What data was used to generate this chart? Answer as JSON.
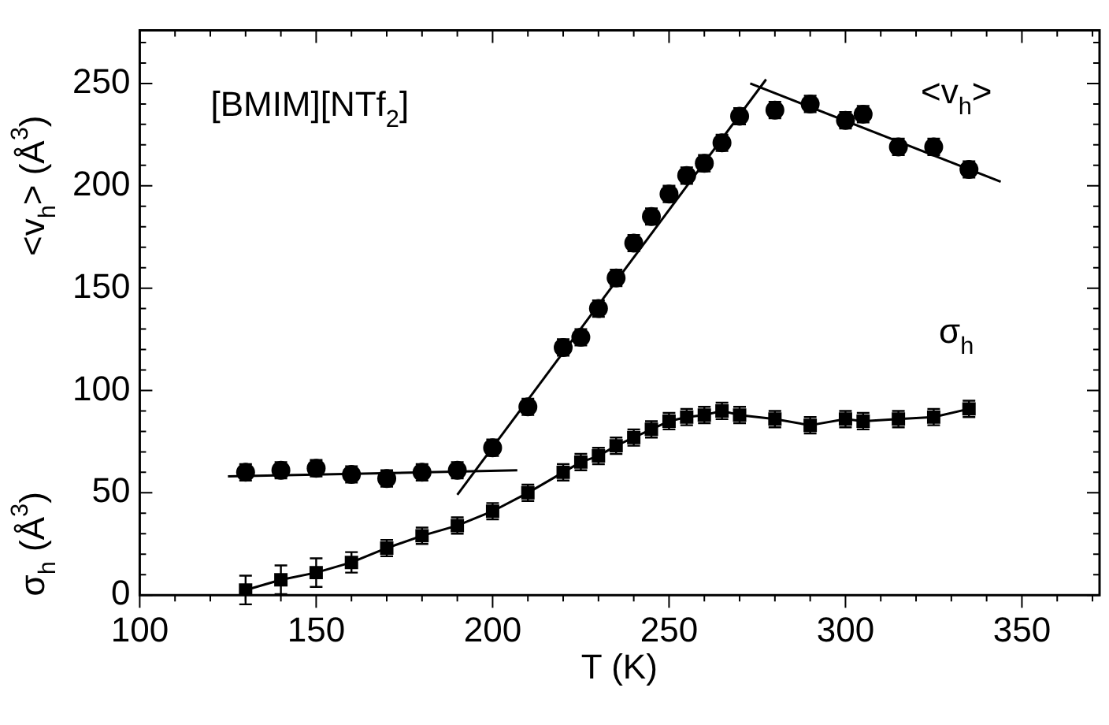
{
  "chart_data": {
    "type": "scatter",
    "xlabel": "T (K)",
    "ylabel": "<v$_{h}$> (Å$^{3}$)",
    "annotations": [
      "[BMIM][NTf$_{2}$]",
      "σ$_{h}$ (Å$^{3}$)"
    ],
    "x": [
      130,
      140,
      150,
      160,
      170,
      180,
      190,
      200,
      210,
      220,
      225,
      230,
      235,
      240,
      245,
      250,
      255,
      260,
      265,
      270,
      280,
      290,
      300,
      305,
      315,
      325,
      335
    ],
    "series": [
      {
        "name": "<v$_{h}$>",
        "marker": "circle",
        "color": "#000000",
        "values": [
          60,
          61,
          62,
          59,
          57,
          60,
          61,
          72,
          92,
          121,
          126,
          140,
          155,
          172,
          185,
          196,
          205,
          211,
          221,
          234,
          237,
          240,
          232,
          235,
          219,
          219,
          208
        ],
        "errors": [
          4,
          4,
          4,
          4,
          4,
          4,
          4,
          4,
          4,
          4,
          4,
          4,
          4,
          4,
          4,
          4,
          4,
          4,
          4,
          4,
          4,
          4,
          4,
          4,
          4,
          4,
          4
        ]
      },
      {
        "name": "σ$_{h}$",
        "type": "line",
        "marker": "square",
        "line_style": "solid",
        "color": "#000000",
        "values": [
          2.5,
          7.5,
          11,
          16,
          23,
          29,
          34,
          41,
          50,
          60,
          65,
          68,
          73,
          77,
          81,
          85,
          87,
          88,
          90,
          88,
          86,
          83,
          86,
          85,
          86,
          87,
          91
        ],
        "errors": [
          7,
          7,
          7,
          5,
          4,
          4,
          4,
          4,
          4,
          4,
          4,
          4,
          4,
          4,
          4,
          4,
          4,
          4,
          4,
          4,
          4,
          4,
          4,
          4,
          4,
          4,
          4
        ]
      },
      {
        "type": "line",
        "marker": "none",
        "color": "#000000",
        "x": [
          125,
          207
        ],
        "values": [
          58,
          61
        ]
      },
      {
        "type": "line",
        "marker": "none",
        "color": "#000000",
        "x": [
          190,
          277.5
        ],
        "values": [
          49,
          252
        ]
      },
      {
        "type": "line",
        "marker": "none",
        "color": "#000000",
        "x": [
          273,
          344
        ],
        "values": [
          250,
          202
        ]
      }
    ],
    "xlim": [
      100,
      372
    ],
    "ylim": [
      0,
      276
    ],
    "xticks": [
      {
        "value": 100,
        "label": "100"
      },
      {
        "value": 110,
        "label": null
      },
      {
        "value": 120,
        "label": null
      },
      {
        "value": 130,
        "label": null
      },
      {
        "value": 140,
        "label": null
      },
      {
        "value": 150,
        "label": "150"
      },
      {
        "value": 160,
        "label": null
      },
      {
        "value": 170,
        "label": null
      },
      {
        "value": 180,
        "label": null
      },
      {
        "value": 190,
        "label": null
      },
      {
        "value": 200,
        "label": "200"
      },
      {
        "value": 210,
        "label": null
      },
      {
        "value": 220,
        "label": null
      },
      {
        "value": 230,
        "label": null
      },
      {
        "value": 240,
        "label": null
      },
      {
        "value": 250,
        "label": "250"
      },
      {
        "value": 260,
        "label": null
      },
      {
        "value": 270,
        "label": null
      },
      {
        "value": 280,
        "label": null
      },
      {
        "value": 290,
        "label": null
      },
      {
        "value": 300,
        "label": "300"
      },
      {
        "value": 310,
        "label": null
      },
      {
        "value": 320,
        "label": null
      },
      {
        "value": 330,
        "label": null
      },
      {
        "value": 340,
        "label": null
      },
      {
        "value": 350,
        "label": "350"
      },
      {
        "value": 360,
        "label": null
      },
      {
        "value": 370,
        "label": null
      }
    ],
    "yticks": [
      {
        "value": 0,
        "label": "0"
      },
      {
        "value": 10,
        "label": null
      },
      {
        "value": 20,
        "label": null
      },
      {
        "value": 30,
        "label": null
      },
      {
        "value": 40,
        "label": null
      },
      {
        "value": 50,
        "label": "50"
      },
      {
        "value": 60,
        "label": null
      },
      {
        "value": 70,
        "label": null
      },
      {
        "value": 80,
        "label": null
      },
      {
        "value": 90,
        "label": null
      },
      {
        "value": 100,
        "label": "100"
      },
      {
        "value": 110,
        "label": null
      },
      {
        "value": 120,
        "label": null
      },
      {
        "value": 130,
        "label": null
      },
      {
        "value": 140,
        "label": null
      },
      {
        "value": 150,
        "label": "150"
      },
      {
        "value": 160,
        "label": null
      },
      {
        "value": 170,
        "label": null
      },
      {
        "value": 180,
        "label": null
      },
      {
        "value": 190,
        "label": null
      },
      {
        "value": 200,
        "label": "200"
      },
      {
        "value": 210,
        "label": null
      },
      {
        "value": 220,
        "label": null
      },
      {
        "value": 230,
        "label": null
      },
      {
        "value": 240,
        "label": null
      },
      {
        "value": 250,
        "label": "250"
      },
      {
        "value": 260,
        "label": null
      },
      {
        "value": 270,
        "label": null
      }
    ],
    "grid": false
  }
}
